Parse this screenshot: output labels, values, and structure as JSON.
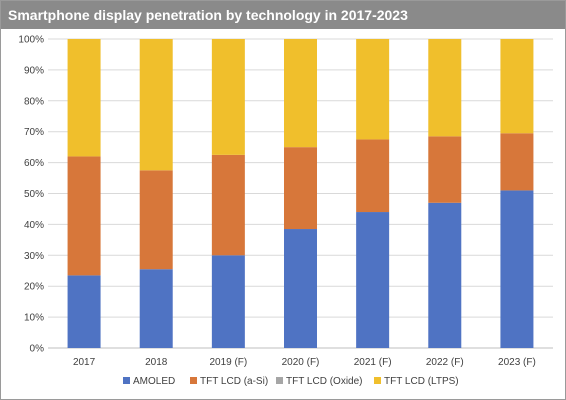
{
  "chart_data": {
    "type": "bar",
    "stacked": true,
    "title": "Smartphone display penetration by technology in 2017-2023",
    "categories": [
      "2017",
      "2018",
      "2019 (F)",
      "2020 (F)",
      "2021 (F)",
      "2022 (F)",
      "2023 (F)"
    ],
    "series": [
      {
        "name": "AMOLED",
        "color": "#4f73c3",
        "values": [
          23.5,
          25.5,
          30,
          38.5,
          44,
          47,
          51
        ]
      },
      {
        "name": "TFT LCD (a-Si)",
        "color": "#d7773a",
        "values": [
          38.5,
          32,
          32.5,
          26.5,
          23.5,
          21.5,
          18.5
        ]
      },
      {
        "name": "TFT LCD (Oxide)",
        "color": "#a6a6a6",
        "values": [
          0,
          0,
          0,
          0,
          0,
          0,
          0
        ]
      },
      {
        "name": "TFT LCD (LTPS)",
        "color": "#f0bf2c",
        "values": [
          38,
          42.5,
          37.5,
          35,
          32.5,
          31.5,
          30.5
        ]
      }
    ],
    "ylim": [
      0,
      100
    ],
    "yticks": [
      "0%",
      "10%",
      "20%",
      "30%",
      "40%",
      "50%",
      "60%",
      "70%",
      "80%",
      "90%",
      "100%"
    ],
    "grid": true,
    "legend": "bottom",
    "xlabel": "",
    "ylabel": ""
  }
}
